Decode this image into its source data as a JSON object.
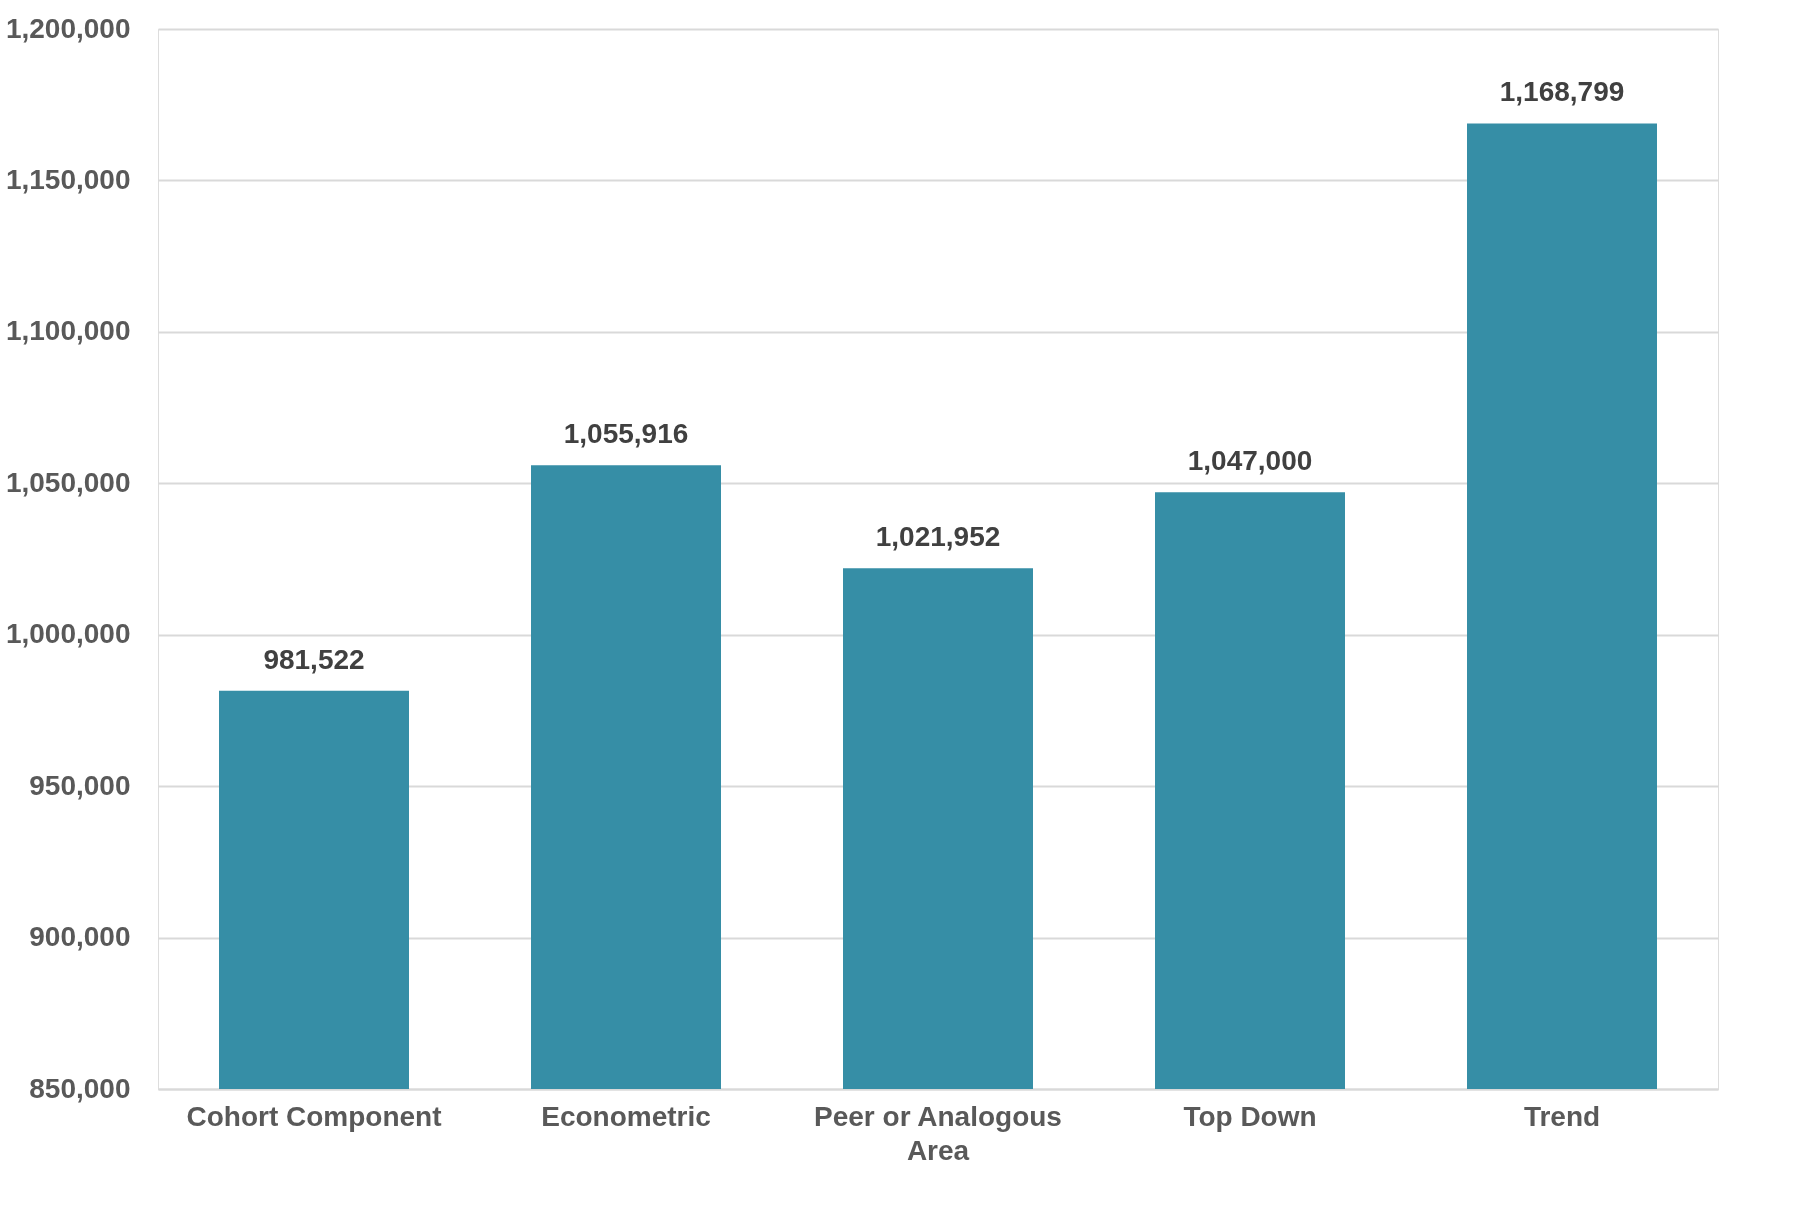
{
  "chart_data": {
    "type": "bar",
    "categories": [
      "Cohort Component",
      "Econometric",
      "Peer or Analogous Area",
      "Top Down",
      "Trend"
    ],
    "values": [
      981522,
      1055916,
      1021952,
      1047000,
      1168799
    ],
    "value_labels": [
      "981,522",
      "1,055,916",
      "1,021,952",
      "1,047,000",
      "1,168,799"
    ],
    "color": "#368ea6",
    "ylim": [
      850000,
      1200000
    ],
    "yticks": [
      {
        "value": 850000,
        "label": "850,000"
      },
      {
        "value": 900000,
        "label": "900,000"
      },
      {
        "value": 950000,
        "label": "950,000"
      },
      {
        "value": 1000000,
        "label": "1,000,000"
      },
      {
        "value": 1050000,
        "label": "1,050,000"
      },
      {
        "value": 1100000,
        "label": "1,100,000"
      },
      {
        "value": 1150000,
        "label": "1,150,000"
      },
      {
        "value": 1200000,
        "label": "1,200,000"
      }
    ],
    "grid": "y"
  }
}
